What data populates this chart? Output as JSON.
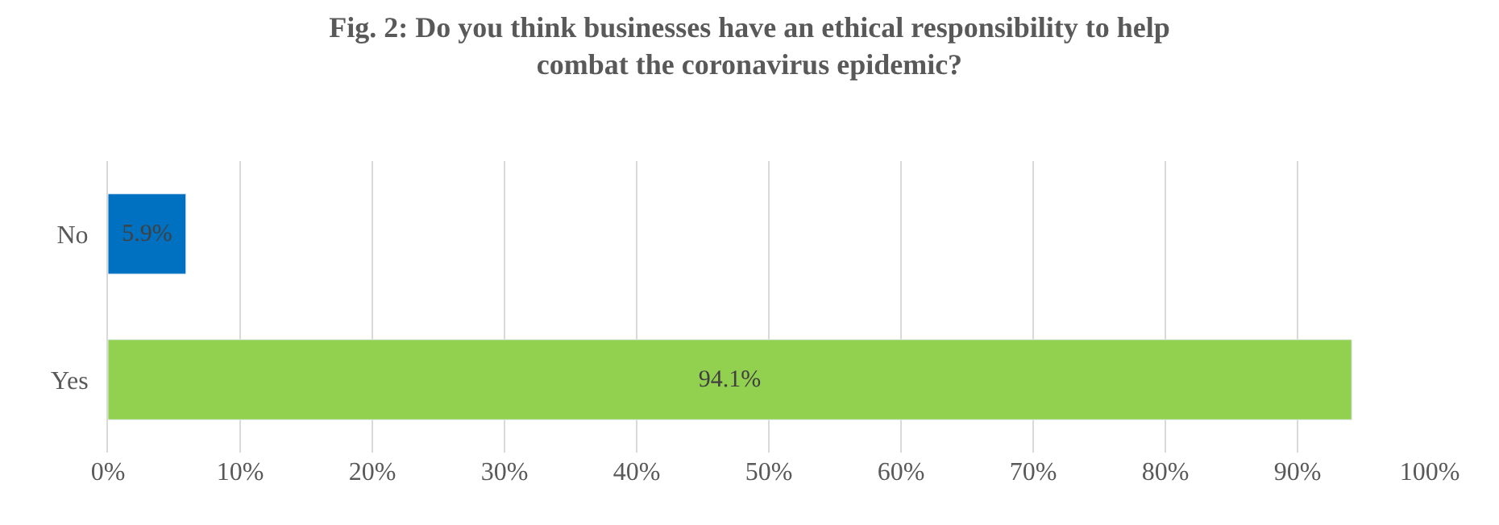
{
  "chart_data": {
    "type": "bar",
    "orientation": "horizontal",
    "title": "Fig. 2: Do you think businesses have an ethical responsibility to help\ncombat the coronavirus epidemic?",
    "categories": [
      "No",
      "Yes"
    ],
    "values": [
      5.9,
      94.1
    ],
    "colors": [
      "#0070c0",
      "#92d050"
    ],
    "value_labels": [
      "5.9%",
      "94.1%"
    ],
    "xlim": [
      0,
      100
    ],
    "xticks": [
      {
        "value": 0,
        "label": "0%"
      },
      {
        "value": 10,
        "label": "10%"
      },
      {
        "value": 20,
        "label": "20%"
      },
      {
        "value": 30,
        "label": "30%"
      },
      {
        "value": 40,
        "label": "40%"
      },
      {
        "value": 50,
        "label": "50%"
      },
      {
        "value": 60,
        "label": "60%"
      },
      {
        "value": 70,
        "label": "70%"
      },
      {
        "value": 80,
        "label": "80%"
      },
      {
        "value": 90,
        "label": "90%"
      },
      {
        "value": 100,
        "label": "100%"
      }
    ],
    "grid": "x",
    "legend": false
  }
}
